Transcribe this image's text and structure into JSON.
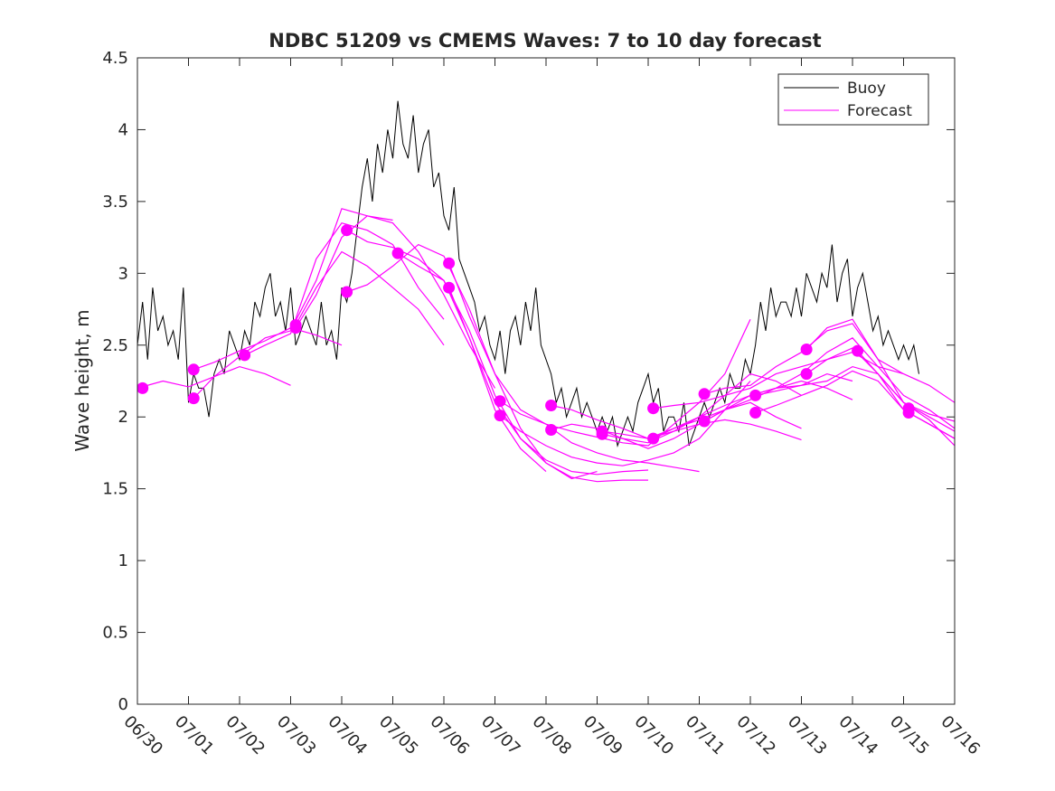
{
  "chart_data": {
    "type": "line",
    "title": "NDBC 51209 vs CMEMS Waves: 7 to 10 day forecast",
    "xlabel": "",
    "ylabel": "Wave height, m",
    "xlim": [
      0,
      16
    ],
    "ylim": [
      0,
      4.5
    ],
    "xticks": [
      "06/30",
      "07/01",
      "07/02",
      "07/03",
      "07/04",
      "07/05",
      "07/06",
      "07/07",
      "07/08",
      "07/09",
      "07/10",
      "07/11",
      "07/12",
      "07/13",
      "07/14",
      "07/15",
      "07/16"
    ],
    "yticks": [
      "0",
      "0.5",
      "1",
      "1.5",
      "2",
      "2.5",
      "3",
      "3.5",
      "4",
      "4.5"
    ],
    "grid": false,
    "legend": {
      "placement": "top-right",
      "entries": [
        "Buoy",
        "Forecast"
      ]
    },
    "colors": {
      "buoy": "#000000",
      "forecast": "#ff00ff"
    },
    "buoy": {
      "name": "Buoy",
      "x": [
        0,
        0.1,
        0.2,
        0.3,
        0.4,
        0.5,
        0.6,
        0.7,
        0.8,
        0.9,
        1.0,
        1.1,
        1.2,
        1.3,
        1.4,
        1.5,
        1.6,
        1.7,
        1.8,
        1.9,
        2.0,
        2.1,
        2.2,
        2.3,
        2.4,
        2.5,
        2.6,
        2.7,
        2.8,
        2.9,
        3.0,
        3.1,
        3.2,
        3.3,
        3.4,
        3.5,
        3.6,
        3.7,
        3.8,
        3.9,
        4.0,
        4.1,
        4.2,
        4.3,
        4.4,
        4.5,
        4.6,
        4.7,
        4.8,
        4.9,
        5.0,
        5.1,
        5.2,
        5.3,
        5.4,
        5.5,
        5.6,
        5.7,
        5.8,
        5.9,
        6.0,
        6.1,
        6.2,
        6.3,
        6.4,
        6.5,
        6.6,
        6.7,
        6.8,
        6.9,
        7.0,
        7.1,
        7.2,
        7.3,
        7.4,
        7.5,
        7.6,
        7.7,
        7.8,
        7.9,
        8.0,
        8.1,
        8.2,
        8.3,
        8.4,
        8.5,
        8.6,
        8.7,
        8.8,
        8.9,
        9.0,
        9.1,
        9.2,
        9.3,
        9.4,
        9.5,
        9.6,
        9.7,
        9.8,
        9.9,
        10.0,
        10.1,
        10.2,
        10.3,
        10.4,
        10.5,
        10.6,
        10.7,
        10.8,
        10.9,
        11.0,
        11.1,
        11.2,
        11.3,
        11.4,
        11.5,
        11.6,
        11.7,
        11.8,
        11.9,
        12.0,
        12.1,
        12.2,
        12.3,
        12.4,
        12.5,
        12.6,
        12.7,
        12.8,
        12.9,
        13.0,
        13.1,
        13.2,
        13.3,
        13.4,
        13.5,
        13.6,
        13.7,
        13.8,
        13.9,
        14.0,
        14.1,
        14.2,
        14.3,
        14.4,
        14.5,
        14.6,
        14.7,
        14.8,
        14.9,
        15.0,
        15.1,
        15.2,
        15.3
      ],
      "y": [
        2.5,
        2.8,
        2.4,
        2.9,
        2.6,
        2.7,
        2.5,
        2.6,
        2.4,
        2.9,
        2.1,
        2.3,
        2.2,
        2.2,
        2.0,
        2.3,
        2.4,
        2.3,
        2.6,
        2.5,
        2.4,
        2.6,
        2.5,
        2.8,
        2.7,
        2.9,
        3.0,
        2.7,
        2.8,
        2.6,
        2.9,
        2.5,
        2.6,
        2.7,
        2.6,
        2.5,
        2.8,
        2.5,
        2.6,
        2.4,
        2.9,
        2.8,
        3.0,
        3.3,
        3.6,
        3.8,
        3.5,
        3.9,
        3.7,
        4.0,
        3.8,
        4.2,
        3.9,
        3.8,
        4.1,
        3.7,
        3.9,
        4.0,
        3.6,
        3.7,
        3.4,
        3.3,
        3.6,
        3.1,
        3.0,
        2.9,
        2.8,
        2.6,
        2.7,
        2.5,
        2.4,
        2.6,
        2.3,
        2.6,
        2.7,
        2.5,
        2.8,
        2.6,
        2.9,
        2.5,
        2.4,
        2.3,
        2.1,
        2.2,
        2.0,
        2.1,
        2.2,
        2.0,
        2.1,
        2.0,
        1.9,
        2.0,
        1.9,
        2.0,
        1.8,
        1.9,
        2.0,
        1.9,
        2.1,
        2.2,
        2.3,
        2.1,
        2.2,
        1.9,
        2.0,
        2.0,
        1.9,
        2.1,
        1.8,
        1.9,
        2.0,
        2.1,
        2.0,
        2.1,
        2.2,
        2.1,
        2.3,
        2.2,
        2.2,
        2.4,
        2.3,
        2.5,
        2.8,
        2.6,
        2.9,
        2.7,
        2.8,
        2.8,
        2.7,
        2.9,
        2.7,
        3.0,
        2.9,
        2.8,
        3.0,
        2.9,
        3.2,
        2.8,
        3.0,
        3.1,
        2.7,
        2.9,
        3.0,
        2.8,
        2.6,
        2.7,
        2.5,
        2.6,
        2.5,
        2.4,
        2.5,
        2.4,
        2.5,
        2.3
      ]
    },
    "forecast_series": [
      {
        "x": [
          0.0,
          0.5,
          1.0,
          1.5,
          2.0,
          2.5,
          3.0
        ],
        "y": [
          2.2,
          2.25,
          2.21,
          2.28,
          2.35,
          2.3,
          2.22
        ]
      },
      {
        "x": [
          1.1,
          1.5,
          2.0,
          2.5,
          3.0,
          3.5,
          4.0
        ],
        "y": [
          2.33,
          2.38,
          2.46,
          2.53,
          2.62,
          2.57,
          2.5
        ]
      },
      {
        "x": [
          1.1,
          1.5,
          2.0,
          2.5,
          3.0,
          3.5,
          4.0,
          4.5,
          5.0
        ],
        "y": [
          2.13,
          2.28,
          2.42,
          2.55,
          2.6,
          2.95,
          3.45,
          3.4,
          3.37
        ]
      },
      {
        "x": [
          2.1,
          2.5,
          3.0,
          3.5,
          4.0,
          4.5,
          5.0,
          5.5,
          6.0
        ],
        "y": [
          2.43,
          2.5,
          2.58,
          3.1,
          3.35,
          3.3,
          3.2,
          2.9,
          2.68
        ]
      },
      {
        "x": [
          3.1,
          3.5,
          4.0,
          4.5,
          5.0,
          5.5,
          6.0
        ],
        "y": [
          2.64,
          2.9,
          3.15,
          3.05,
          2.9,
          2.75,
          2.5
        ]
      },
      {
        "x": [
          3.1,
          3.5,
          4.0,
          4.5,
          5.0,
          5.5,
          6.0,
          6.5,
          7.0
        ],
        "y": [
          2.62,
          2.85,
          3.25,
          3.4,
          3.35,
          3.15,
          2.85,
          2.5,
          2.2
        ]
      },
      {
        "x": [
          4.1,
          4.5,
          5.0,
          5.5,
          6.0,
          6.5,
          7.0,
          7.5,
          8.0
        ],
        "y": [
          3.3,
          3.22,
          3.18,
          3.1,
          2.95,
          2.55,
          2.05,
          1.78,
          1.62
        ]
      },
      {
        "x": [
          4.1,
          4.5,
          5.0,
          5.5,
          6.0,
          6.5,
          7.0,
          7.5,
          8.0,
          8.5,
          9.0
        ],
        "y": [
          2.87,
          2.92,
          3.05,
          3.2,
          3.12,
          2.75,
          2.3,
          1.92,
          1.68,
          1.57,
          1.62
        ]
      },
      {
        "x": [
          5.1,
          5.5,
          6.0,
          6.5,
          7.0,
          7.5,
          8.0,
          8.5,
          9.0,
          9.5,
          10.0
        ],
        "y": [
          3.14,
          3.05,
          2.95,
          2.6,
          2.15,
          1.85,
          1.68,
          1.58,
          1.55,
          1.56,
          1.56
        ]
      },
      {
        "x": [
          6.1,
          6.5,
          7.0,
          7.5,
          8.0,
          8.5,
          9.0,
          9.5,
          10.0,
          10.5,
          11.0
        ],
        "y": [
          3.07,
          2.7,
          2.3,
          2.05,
          1.95,
          1.82,
          1.75,
          1.7,
          1.68,
          1.65,
          1.62
        ]
      },
      {
        "x": [
          6.1,
          6.5,
          7.0,
          7.5,
          8.0,
          8.5,
          9.0,
          9.5,
          10.0
        ],
        "y": [
          2.9,
          2.55,
          2.1,
          1.85,
          1.7,
          1.62,
          1.6,
          1.62,
          1.63
        ]
      },
      {
        "x": [
          7.1,
          7.5,
          8.0,
          8.5,
          9.0,
          9.5,
          10.0,
          10.5,
          11.0,
          11.5,
          12.0
        ],
        "y": [
          2.11,
          2.02,
          1.95,
          1.9,
          1.86,
          1.82,
          1.8,
          1.95,
          2.1,
          2.3,
          2.68
        ]
      },
      {
        "x": [
          7.1,
          7.5,
          8.0,
          8.5,
          9.0,
          9.5,
          10.0,
          10.5,
          11.0,
          11.5,
          12.0
        ],
        "y": [
          2.01,
          1.9,
          1.8,
          1.72,
          1.68,
          1.66,
          1.7,
          1.75,
          1.85,
          2.05,
          2.25
        ]
      },
      {
        "x": [
          8.1,
          8.5,
          9.0,
          9.5,
          10.0,
          10.5,
          11.0,
          11.5,
          12.0,
          12.5,
          13.0
        ],
        "y": [
          2.08,
          2.05,
          1.98,
          1.92,
          1.85,
          1.9,
          2.0,
          2.15,
          2.3,
          2.25,
          2.15
        ]
      },
      {
        "x": [
          8.1,
          8.5,
          9.0,
          9.5,
          10.0,
          10.5,
          11.0,
          11.5,
          12.0,
          12.5,
          13.0
        ],
        "y": [
          1.91,
          1.95,
          1.92,
          1.85,
          1.78,
          1.85,
          1.95,
          2.05,
          2.1,
          2.0,
          1.92
        ]
      },
      {
        "x": [
          9.1,
          9.5,
          10.0,
          10.5,
          11.0,
          11.5,
          12.0,
          12.5,
          13.0,
          13.5,
          14.0
        ],
        "y": [
          1.9,
          1.88,
          1.85,
          1.92,
          2.0,
          2.08,
          2.15,
          2.2,
          2.22,
          2.3,
          2.25
        ]
      },
      {
        "x": [
          9.1,
          9.5,
          10.0,
          10.5,
          11.0,
          11.5,
          12.0,
          12.5,
          13.0
        ],
        "y": [
          1.88,
          1.85,
          1.82,
          1.9,
          1.95,
          1.98,
          1.95,
          1.9,
          1.84
        ]
      },
      {
        "x": [
          10.1,
          10.5,
          11.0,
          11.5,
          12.0,
          12.5,
          13.0,
          13.5,
          14.0,
          14.5,
          15.0
        ],
        "y": [
          2.06,
          2.08,
          2.1,
          2.15,
          2.2,
          2.3,
          2.35,
          2.4,
          2.45,
          2.35,
          2.3
        ]
      },
      {
        "x": [
          10.1,
          10.5,
          11.0,
          11.5,
          12.0,
          12.5,
          13.0,
          13.5,
          14.0
        ],
        "y": [
          1.85,
          1.92,
          1.98,
          2.05,
          2.15,
          2.2,
          2.25,
          2.2,
          2.12
        ]
      },
      {
        "x": [
          11.1,
          11.5,
          12.0,
          12.5,
          13.0,
          13.5,
          14.0,
          14.5,
          15.0,
          15.5,
          16.0
        ],
        "y": [
          2.16,
          2.2,
          2.22,
          2.35,
          2.45,
          2.6,
          2.65,
          2.4,
          2.3,
          2.22,
          2.1
        ]
      },
      {
        "x": [
          11.1,
          11.5,
          12.0,
          12.5,
          13.0,
          13.5,
          14.0,
          14.5,
          15.0,
          15.5,
          16.0
        ],
        "y": [
          1.97,
          2.05,
          2.12,
          2.2,
          2.3,
          2.45,
          2.55,
          2.35,
          2.15,
          2.05,
          1.92
        ]
      },
      {
        "x": [
          12.1,
          12.5,
          13.0,
          13.5,
          14.0,
          14.5,
          15.0,
          15.5,
          16.0
        ],
        "y": [
          2.15,
          2.18,
          2.22,
          2.25,
          2.35,
          2.3,
          2.1,
          2.0,
          1.9
        ]
      },
      {
        "x": [
          12.1,
          12.5,
          13.0,
          13.5,
          14.0,
          14.5,
          15.0,
          15.5,
          16.0
        ],
        "y": [
          2.03,
          2.08,
          2.15,
          2.22,
          2.32,
          2.25,
          2.05,
          1.95,
          1.85
        ]
      },
      {
        "x": [
          13.1,
          13.5,
          14.0,
          14.5,
          15.0,
          15.5,
          16.0
        ],
        "y": [
          2.47,
          2.62,
          2.68,
          2.4,
          2.1,
          1.98,
          1.8
        ]
      },
      {
        "x": [
          13.1,
          13.5,
          14.0,
          14.5,
          15.0,
          15.5,
          16.0
        ],
        "y": [
          2.3,
          2.4,
          2.48,
          2.3,
          2.05,
          1.95,
          1.85
        ]
      },
      {
        "x": [
          14.1,
          14.5,
          15.0,
          15.5,
          16.0
        ],
        "y": [
          2.46,
          2.3,
          2.1,
          2.02,
          1.97
        ]
      }
    ],
    "forecast_markers": {
      "x": [
        0.1,
        1.1,
        1.1,
        2.1,
        3.1,
        3.1,
        4.1,
        4.1,
        5.1,
        6.1,
        6.1,
        7.1,
        7.1,
        8.1,
        8.1,
        9.1,
        9.1,
        10.1,
        10.1,
        11.1,
        11.1,
        12.1,
        12.1,
        13.1,
        13.1,
        14.1,
        15.1,
        15.1
      ],
      "y": [
        2.2,
        2.33,
        2.13,
        2.43,
        2.64,
        2.62,
        3.3,
        2.87,
        3.14,
        3.07,
        2.9,
        2.11,
        2.01,
        2.08,
        1.91,
        1.9,
        1.88,
        2.06,
        1.85,
        2.16,
        1.97,
        2.15,
        2.03,
        2.47,
        2.3,
        2.46,
        2.06,
        2.03
      ]
    }
  }
}
